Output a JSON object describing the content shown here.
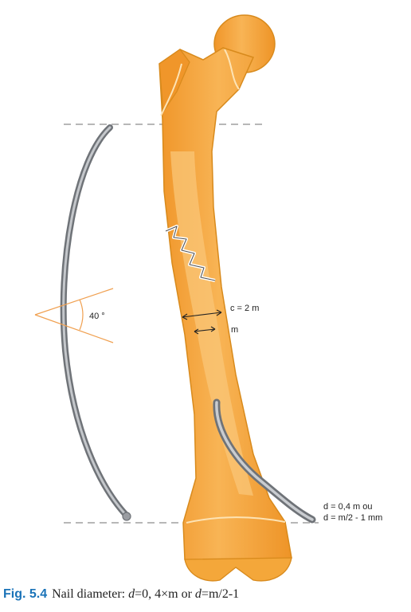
{
  "labels": {
    "angle": "40 °",
    "cortex": "c = 2 m",
    "canal": "m",
    "diameter_line1": "d = 0,4 m ou",
    "diameter_line2": "d = m/2 - 1 mm"
  },
  "caption": {
    "figure_number": "Fig. 5.4",
    "text_prefix": "Nail diameter: ",
    "var1": "d",
    "expr1": "=0, 4×m or ",
    "var2": "d",
    "expr2": "=m/2-1"
  },
  "colors": {
    "bone_fill": "#f4a73a",
    "bone_highlight": "#f9c677",
    "bone_outline": "#d88a1c",
    "nail": "#8d9095",
    "dashed_line": "#8c8c8c",
    "angle_lines": "#f0a050",
    "caption_label": "#1a73b8"
  }
}
